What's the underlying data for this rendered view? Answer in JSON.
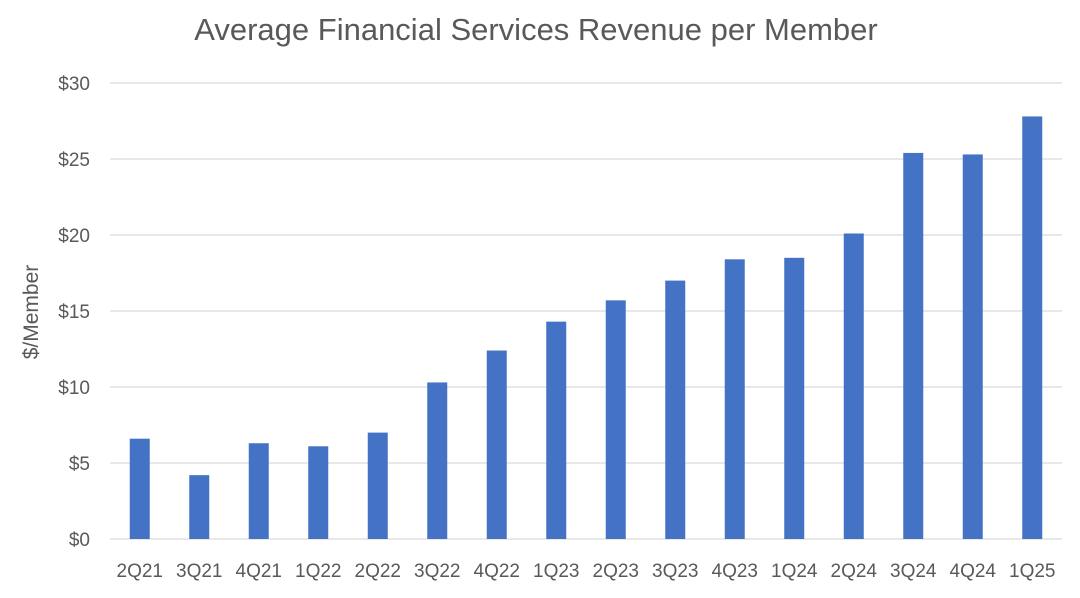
{
  "chart_data": {
    "type": "bar",
    "title": "Average Financial Services Revenue per Member",
    "xlabel": "",
    "ylabel": "$/Member",
    "categories": [
      "2Q21",
      "3Q21",
      "4Q21",
      "1Q22",
      "2Q22",
      "3Q22",
      "4Q22",
      "1Q23",
      "2Q23",
      "3Q23",
      "4Q23",
      "1Q24",
      "2Q24",
      "3Q24",
      "4Q24",
      "1Q25"
    ],
    "values": [
      6.6,
      4.2,
      6.3,
      6.1,
      7.0,
      10.3,
      12.4,
      14.3,
      15.7,
      17.0,
      18.4,
      18.5,
      20.1,
      25.4,
      25.3,
      27.8
    ],
    "ylim": [
      0,
      30
    ],
    "yticks": [
      0,
      5,
      10,
      15,
      20,
      25,
      30
    ],
    "ytick_labels": [
      "$0",
      "$5",
      "$10",
      "$15",
      "$20",
      "$25",
      "$30"
    ],
    "grid": true,
    "legend": "none",
    "bar_color": "#4472c4"
  }
}
